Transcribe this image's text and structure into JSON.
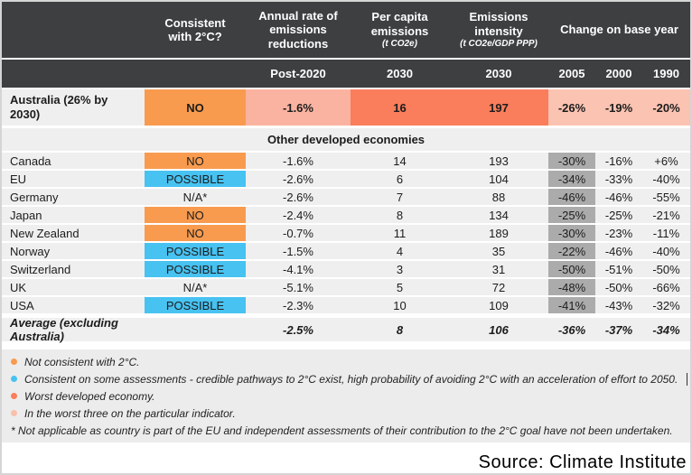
{
  "chart_data": {
    "type": "table",
    "header": {
      "consistent": "Consistent with 2°C?",
      "annual_rate": "Annual rate of emissions reductions",
      "per_capita": "Per capita emissions",
      "per_capita_unit": "(t CO2e)",
      "intensity": "Emissions intensity",
      "intensity_unit": "(t CO2e/GDP PPP)",
      "change": "Change on base year",
      "sub_annual": "Post-2020",
      "sub_per_capita": "2030",
      "sub_intensity": "2030",
      "sub_2005": "2005",
      "sub_2000": "2000",
      "sub_1990": "1990"
    },
    "australia": {
      "country": "Australia (26% by 2030)",
      "consistent": "NO",
      "annual_rate": "-1.6%",
      "per_capita": "16",
      "intensity": "197",
      "y2005": "-26%",
      "y2000": "-19%",
      "y1990": "-20%"
    },
    "section_label": "Other developed economies",
    "rows": [
      {
        "country": "Canada",
        "consistent": "NO",
        "status": "no",
        "annual_rate": "-1.6%",
        "per_capita": "14",
        "intensity": "193",
        "y2005": "-30%",
        "y2000": "-16%",
        "y1990": "+6%"
      },
      {
        "country": "EU",
        "consistent": "POSSIBLE",
        "status": "possible",
        "annual_rate": "-2.6%",
        "per_capita": "6",
        "intensity": "104",
        "y2005": "-34%",
        "y2000": "-33%",
        "y1990": "-40%"
      },
      {
        "country": "Germany",
        "consistent": "N/A*",
        "status": "na",
        "annual_rate": "-2.6%",
        "per_capita": "7",
        "intensity": "88",
        "y2005": "-46%",
        "y2000": "-46%",
        "y1990": "-55%"
      },
      {
        "country": "Japan",
        "consistent": "NO",
        "status": "no",
        "annual_rate": "-2.4%",
        "per_capita": "8",
        "intensity": "134",
        "y2005": "-25%",
        "y2000": "-25%",
        "y1990": "-21%"
      },
      {
        "country": "New Zealand",
        "consistent": "NO",
        "status": "no",
        "annual_rate": "-0.7%",
        "per_capita": "11",
        "intensity": "189",
        "y2005": "-30%",
        "y2000": "-23%",
        "y1990": "-11%"
      },
      {
        "country": "Norway",
        "consistent": "POSSIBLE",
        "status": "possible",
        "annual_rate": "-1.5%",
        "per_capita": "4",
        "intensity": "35",
        "y2005": "-22%",
        "y2000": "-46%",
        "y1990": "-40%"
      },
      {
        "country": "Switzerland",
        "consistent": "POSSIBLE",
        "status": "possible",
        "annual_rate": "-4.1%",
        "per_capita": "3",
        "intensity": "31",
        "y2005": "-50%",
        "y2000": "-51%",
        "y1990": "-50%"
      },
      {
        "country": "UK",
        "consistent": "N/A*",
        "status": "na",
        "annual_rate": "-5.1%",
        "per_capita": "5",
        "intensity": "72",
        "y2005": "-48%",
        "y2000": "-50%",
        "y1990": "-66%"
      },
      {
        "country": "USA",
        "consistent": "POSSIBLE",
        "status": "possible",
        "annual_rate": "-2.3%",
        "per_capita": "10",
        "intensity": "109",
        "y2005": "-41%",
        "y2000": "-43%",
        "y1990": "-32%"
      }
    ],
    "average": {
      "label": "Average (excluding Australia)",
      "annual_rate": "-2.5%",
      "per_capita": "8",
      "intensity": "106",
      "y2005": "-36%",
      "y2000": "-37%",
      "y1990": "-34%"
    },
    "footnotes": [
      {
        "dot": "orange",
        "caret": false,
        "text": "Not consistent with 2°C."
      },
      {
        "dot": "blue",
        "caret": true,
        "text": "Consistent on some assessments - credible pathways to 2°C exist, high probability of avoiding 2°C with an acceleration of effort to 2050."
      },
      {
        "dot": "salmon",
        "caret": false,
        "text": "Worst developed economy."
      },
      {
        "dot": "pink",
        "caret": false,
        "text": "In the worst three on the particular indicator."
      },
      {
        "dot": "none",
        "caret": false,
        "text": "* Not applicable as country is part of the EU and independent assessments of their contribution to the 2°C goal have not been undertaken."
      }
    ],
    "source": "Source: Climate Institute",
    "colors": {
      "header_bg": "#3d3f41",
      "row_bg": "#efefef",
      "no_orange": "#f89b4f",
      "possible_blue": "#47c2f1",
      "worst_salmon": "#fa7d5c",
      "worst_three_light": "#fab3a0",
      "worst_three_pink": "#fbc3b1",
      "base_2005_gray": "#ababab",
      "footnote_bg": "#ececec"
    }
  }
}
